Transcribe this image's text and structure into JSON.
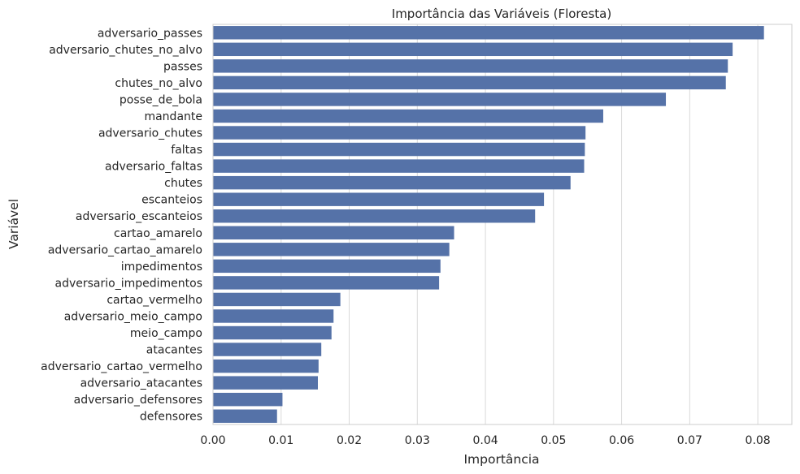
{
  "chart_data": {
    "type": "bar",
    "orientation": "horizontal",
    "title": "Importância das Variáveis (Floresta)",
    "xlabel": "Importância",
    "ylabel": "Variável",
    "categories": [
      "adversario_passes",
      "adversario_chutes_no_alvo",
      "passes",
      "chutes_no_alvo",
      "posse_de_bola",
      "mandante",
      "adversario_chutes",
      "faltas",
      "adversario_faltas",
      "chutes",
      "escanteios",
      "adversario_escanteios",
      "cartao_amarelo",
      "adversario_cartao_amarelo",
      "impedimentos",
      "adversario_impedimentos",
      "cartao_vermelho",
      "adversario_meio_campo",
      "meio_campo",
      "atacantes",
      "adversario_cartao_vermelho",
      "adversario_atacantes",
      "adversario_defensores",
      "defensores"
    ],
    "values": [
      0.0809,
      0.0763,
      0.0756,
      0.0753,
      0.0665,
      0.0573,
      0.0547,
      0.0546,
      0.0545,
      0.0525,
      0.0486,
      0.0473,
      0.0354,
      0.0347,
      0.0334,
      0.0332,
      0.0187,
      0.0177,
      0.0174,
      0.0159,
      0.0155,
      0.0154,
      0.0102,
      0.0094
    ],
    "xlim": [
      0,
      0.085
    ],
    "xticks": [
      "0.00",
      "0.01",
      "0.02",
      "0.03",
      "0.04",
      "0.05",
      "0.06",
      "0.07",
      "0.08"
    ],
    "xtick_values": [
      0,
      0.01,
      0.02,
      0.03,
      0.04,
      0.05,
      0.06,
      0.07,
      0.08
    ],
    "grid": "vertical",
    "bar_color": "#5572a8",
    "grid_color": "#d9d9d9",
    "frame_color": "#cccccc"
  }
}
